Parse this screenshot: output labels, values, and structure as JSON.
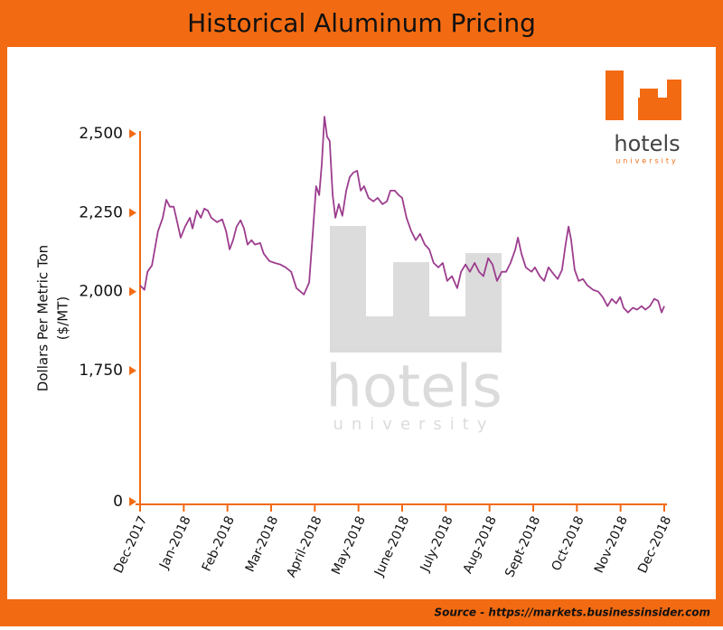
{
  "chart_data": {
    "type": "line",
    "title": "Historical Aluminum Pricing",
    "ylabel": [
      "Dollars Per Metric Ton",
      "($/MT)"
    ],
    "source": "Source - https://markets.businessinsider.com",
    "xlim": [
      0,
      12
    ],
    "xticks": [
      {
        "value": 0,
        "label": "Dec-2017"
      },
      {
        "value": 1,
        "label": "Jan-2018"
      },
      {
        "value": 2,
        "label": "Feb-2018"
      },
      {
        "value": 3,
        "label": "Mar-2018"
      },
      {
        "value": 4,
        "label": "April-2018"
      },
      {
        "value": 5,
        "label": "May-2018"
      },
      {
        "value": 6,
        "label": "June-2018"
      },
      {
        "value": 7,
        "label": "July-2018"
      },
      {
        "value": 8,
        "label": "Aug-2018"
      },
      {
        "value": 9,
        "label": "Sept-2018"
      },
      {
        "value": 10,
        "label": "Oct-2018"
      },
      {
        "value": 11,
        "label": "Nov-2018"
      },
      {
        "value": 12,
        "label": "Dec-2018"
      }
    ],
    "ylim": [
      0,
      2500
    ],
    "ybreak": [
      0,
      1750
    ],
    "yticks": [
      0,
      {
        "value": 1750,
        "label": "1,750"
      },
      {
        "value": 2000,
        "label": "2,000"
      },
      {
        "value": 2250,
        "label": "2,250"
      },
      {
        "value": 2500,
        "label": "2,500"
      }
    ],
    "color": "#9c3d8e",
    "x": [
      0,
      0.1,
      0.17,
      0.27,
      0.41,
      0.52,
      0.6,
      0.68,
      0.77,
      0.85,
      0.93,
      1.03,
      1.14,
      1.2,
      1.3,
      1.39,
      1.47,
      1.55,
      1.63,
      1.76,
      1.88,
      1.97,
      2.05,
      2.13,
      2.21,
      2.3,
      2.38,
      2.46,
      2.55,
      2.63,
      2.75,
      2.83,
      2.96,
      3.08,
      3.21,
      3.33,
      3.46,
      3.58,
      3.75,
      3.87,
      3.95,
      4.03,
      4.1,
      4.16,
      4.22,
      4.28,
      4.34,
      4.41,
      4.47,
      4.55,
      4.63,
      4.72,
      4.8,
      4.88,
      4.97,
      5.05,
      5.13,
      5.23,
      5.34,
      5.44,
      5.55,
      5.65,
      5.73,
      5.83,
      5.92,
      6.0,
      6.1,
      6.21,
      6.31,
      6.41,
      6.52,
      6.62,
      6.72,
      6.83,
      6.93,
      7.03,
      7.14,
      7.26,
      7.35,
      7.45,
      7.55,
      7.66,
      7.76,
      7.86,
      7.97,
      8.07,
      8.17,
      8.28,
      8.38,
      8.48,
      8.59,
      8.65,
      8.73,
      8.83,
      8.96,
      9.04,
      9.15,
      9.25,
      9.35,
      9.46,
      9.56,
      9.66,
      9.74,
      9.81,
      9.87,
      9.95,
      10.04,
      10.14,
      10.24,
      10.37,
      10.49,
      10.59,
      10.7,
      10.8,
      10.9,
      10.99,
      11.07,
      11.17,
      11.28,
      11.38,
      11.48,
      11.57,
      11.67,
      11.77,
      11.86,
      11.94,
      12
    ],
    "values": [
      2020,
      2006,
      2063,
      2083,
      2191,
      2234,
      2291,
      2269,
      2269,
      2220,
      2171,
      2206,
      2234,
      2200,
      2257,
      2234,
      2263,
      2257,
      2234,
      2220,
      2229,
      2191,
      2134,
      2163,
      2206,
      2226,
      2200,
      2149,
      2163,
      2149,
      2154,
      2120,
      2097,
      2091,
      2086,
      2077,
      2063,
      2011,
      1991,
      2029,
      2177,
      2334,
      2306,
      2406,
      2554,
      2491,
      2477,
      2306,
      2234,
      2277,
      2240,
      2320,
      2363,
      2377,
      2383,
      2320,
      2334,
      2297,
      2286,
      2297,
      2277,
      2286,
      2320,
      2320,
      2306,
      2297,
      2234,
      2191,
      2163,
      2183,
      2149,
      2134,
      2091,
      2077,
      2091,
      2034,
      2049,
      2011,
      2063,
      2086,
      2063,
      2091,
      2063,
      2049,
      2106,
      2086,
      2034,
      2063,
      2063,
      2091,
      2134,
      2171,
      2120,
      2077,
      2063,
      2077,
      2049,
      2034,
      2077,
      2057,
      2040,
      2069,
      2149,
      2206,
      2163,
      2069,
      2034,
      2040,
      2020,
      2006,
      2000,
      1983,
      1954,
      1977,
      1963,
      1983,
      1949,
      1934,
      1949,
      1943,
      1954,
      1943,
      1954,
      1977,
      1971,
      1934,
      1954
    ]
  },
  "logo": {
    "name": "hotels",
    "tagline": "university"
  }
}
